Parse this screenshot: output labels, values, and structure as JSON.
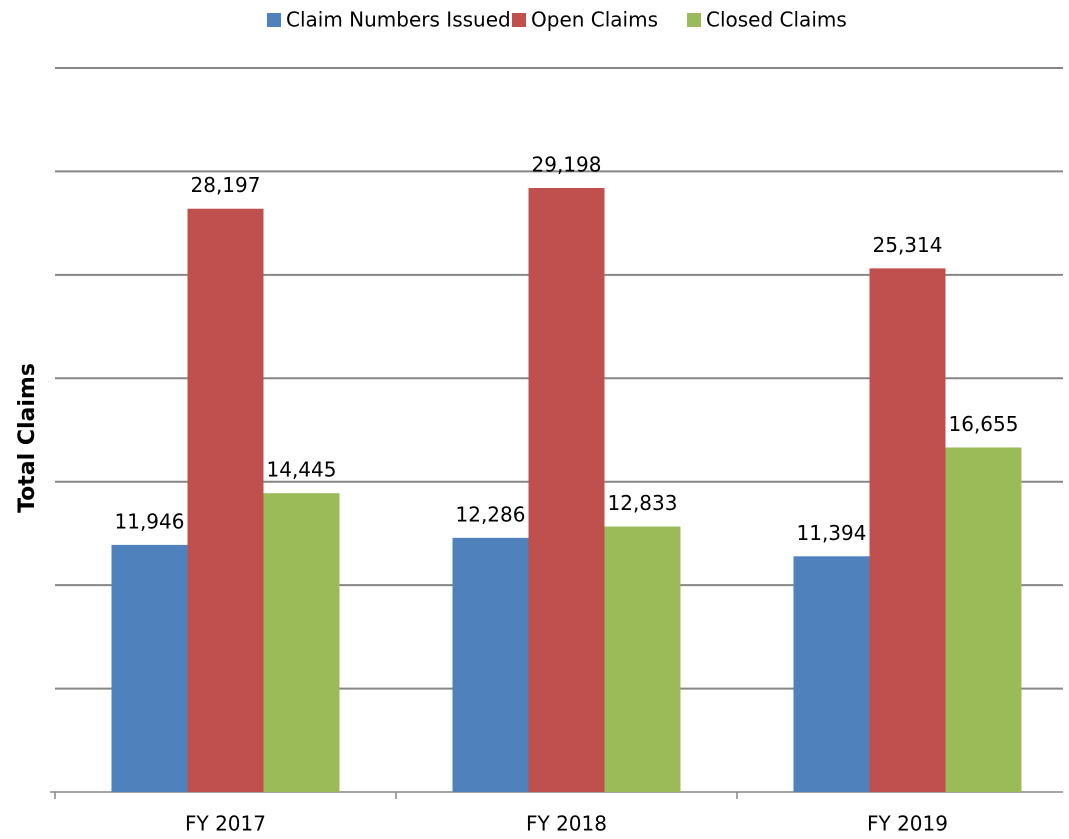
{
  "chart_data": {
    "type": "bar",
    "y_label": "Total Claims",
    "categories": [
      "FY 2017",
      "FY 2018",
      "FY 2019"
    ],
    "series": [
      {
        "name": "Claim Numbers Issued",
        "color": "#4f81bd",
        "values": [
          11946,
          12286,
          11394
        ],
        "value_labels": [
          "11,946",
          "12,286",
          "11,394"
        ]
      },
      {
        "name": "Open Claims",
        "color": "#c0504d",
        "values": [
          28197,
          29198,
          25314
        ],
        "value_labels": [
          "28,197",
          "29,198",
          "25,314"
        ]
      },
      {
        "name": "Closed Claims",
        "color": "#9bbb59",
        "values": [
          14445,
          12833,
          16655
        ],
        "value_labels": [
          "14,445",
          "12,833",
          "16,655"
        ]
      }
    ],
    "ylim": [
      0,
      35000
    ],
    "yticks": [
      5000,
      10000,
      15000,
      20000,
      25000,
      30000,
      35000
    ],
    "grid": true,
    "legend": "top"
  }
}
